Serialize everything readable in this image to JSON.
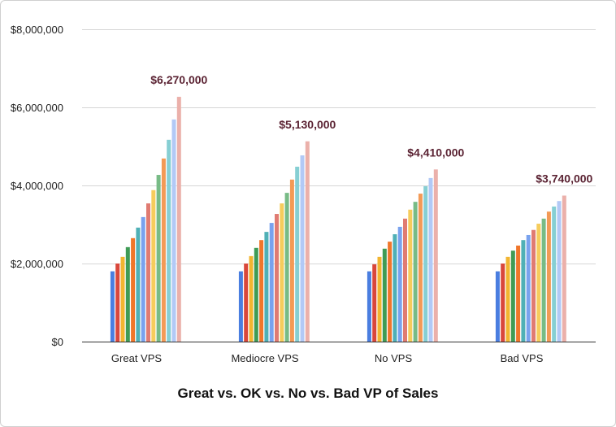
{
  "chart_data": {
    "type": "bar",
    "title": "Great vs. OK vs. No vs. Bad VP of Sales",
    "xlabel": "",
    "ylabel": "",
    "ylim": [
      0,
      8000000
    ],
    "yticks": [
      0,
      2000000,
      4000000,
      6000000,
      8000000
    ],
    "ytick_labels": [
      "$0",
      "$2,000,000",
      "$4,000,000",
      "$6,000,000",
      "$8,000,000"
    ],
    "grid": true,
    "legend": "none",
    "categories": [
      "Great VPS",
      "Mediocre VPS",
      "No VPS",
      "Bad VPS"
    ],
    "series_colors": [
      "#4a7ee0",
      "#d9473b",
      "#f2b530",
      "#3f9b55",
      "#f0762a",
      "#4fb0b6",
      "#79a2ee",
      "#e07b72",
      "#f6cc5c",
      "#78bb86",
      "#f39a56",
      "#86cfd3",
      "#b2c9f6",
      "#ebb0aa"
    ],
    "series": [
      {
        "values": [
          1800000,
          1800000,
          1800000,
          1800000
        ]
      },
      {
        "values": [
          2000000,
          2000000,
          1980000,
          2000000
        ]
      },
      {
        "values": [
          2170000,
          2190000,
          2170000,
          2170000
        ]
      },
      {
        "values": [
          2420000,
          2400000,
          2380000,
          2330000
        ]
      },
      {
        "values": [
          2650000,
          2600000,
          2560000,
          2460000
        ]
      },
      {
        "values": [
          2920000,
          2810000,
          2750000,
          2600000
        ]
      },
      {
        "values": [
          3190000,
          3040000,
          2940000,
          2730000
        ]
      },
      {
        "values": [
          3540000,
          3270000,
          3150000,
          2860000
        ]
      },
      {
        "values": [
          3880000,
          3540000,
          3380000,
          3020000
        ]
      },
      {
        "values": [
          4270000,
          3810000,
          3580000,
          3150000
        ]
      },
      {
        "values": [
          4690000,
          4150000,
          3790000,
          3330000
        ]
      },
      {
        "values": [
          5170000,
          4480000,
          3980000,
          3460000
        ]
      },
      {
        "values": [
          5690000,
          4770000,
          4190000,
          3600000
        ]
      },
      {
        "values": [
          6270000,
          5130000,
          4410000,
          3740000
        ]
      }
    ],
    "data_labels": [
      "$6,270,000",
      "$5,130,000",
      "$4,410,000",
      "$3,740,000"
    ]
  }
}
